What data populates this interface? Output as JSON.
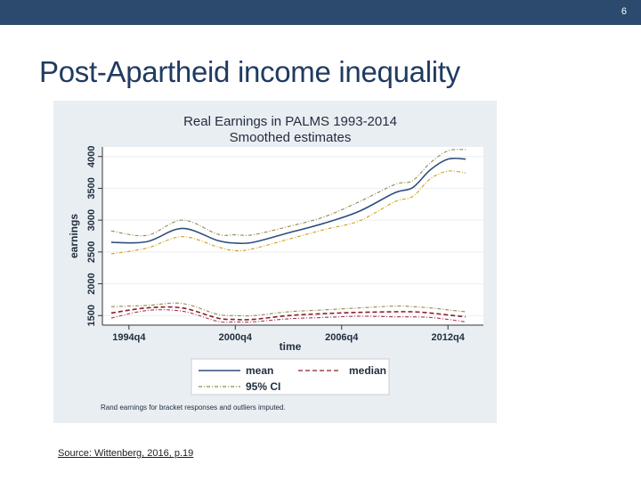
{
  "slide": {
    "number": "6",
    "title": "Post-Apartheid income inequality",
    "source": "Source: Wittenberg, 2016, p.19"
  },
  "chart_data": {
    "type": "line",
    "title": "Real Earnings in PALMS 1993-2014",
    "subtitle": "Smoothed estimates",
    "xlabel": "time",
    "ylabel": "earnings",
    "x_ticks": [
      "1994q4",
      "2000q4",
      "2006q4",
      "2012q4"
    ],
    "x_tick_values": [
      1995,
      2001,
      2007,
      2013
    ],
    "y_ticks": [
      "1500",
      "2000",
      "2500",
      "3000",
      "3500",
      "4000"
    ],
    "y_tick_values": [
      1500,
      2000,
      2500,
      3000,
      3500,
      4000
    ],
    "xlim": [
      1993.5,
      2015
    ],
    "ylim": [
      1350,
      4150
    ],
    "grid": true,
    "x": [
      1994,
      1996,
      1998,
      2000,
      2001,
      2002,
      2004,
      2006,
      2008,
      2010,
      2011,
      2012,
      2013,
      2014
    ],
    "series": [
      {
        "name": "mean",
        "style": "solid",
        "color": "#2f4e7d",
        "values": [
          2650,
          2660,
          2870,
          2680,
          2640,
          2650,
          2800,
          2950,
          3140,
          3430,
          3510,
          3790,
          3960,
          3960
        ]
      },
      {
        "name": "mean 95% CI upper",
        "style": "dash-dot",
        "color": "#8f8a4a",
        "ci": true,
        "values": [
          2830,
          2760,
          3000,
          2780,
          2770,
          2770,
          2900,
          3050,
          3290,
          3560,
          3620,
          3900,
          4090,
          4110
        ]
      },
      {
        "name": "mean 95% CI lower",
        "style": "dash-dot",
        "color": "#c9a11b",
        "ci": true,
        "values": [
          2470,
          2560,
          2740,
          2580,
          2520,
          2550,
          2700,
          2850,
          2990,
          3290,
          3370,
          3650,
          3770,
          3740
        ]
      },
      {
        "name": "median",
        "style": "dashed",
        "color": "#8c1c2f",
        "values": [
          1540,
          1620,
          1620,
          1460,
          1440,
          1440,
          1500,
          1530,
          1550,
          1560,
          1560,
          1540,
          1510,
          1480
        ]
      },
      {
        "name": "median 95% CI upper",
        "style": "dash-dot",
        "color": "#8f8a4a",
        "ci": true,
        "values": [
          1640,
          1660,
          1690,
          1520,
          1500,
          1500,
          1560,
          1590,
          1620,
          1650,
          1640,
          1620,
          1590,
          1560
        ]
      },
      {
        "name": "median 95% CI lower",
        "style": "dash-dot",
        "color": "#a43850",
        "ci": true,
        "values": [
          1460,
          1580,
          1570,
          1410,
          1400,
          1400,
          1450,
          1470,
          1490,
          1480,
          1480,
          1470,
          1440,
          1400
        ]
      }
    ],
    "legend": {
      "placement": "bottom",
      "entries": [
        {
          "label": "mean",
          "style": "solid",
          "color": "#2f4e7d"
        },
        {
          "label": "median",
          "style": "dashed",
          "color": "#8c1c2f"
        },
        {
          "label": "95% CI",
          "style": "dash-dot",
          "color": "#8f8a4a"
        }
      ]
    },
    "note": "Rand earnings for bracket responses and outliers imputed."
  }
}
